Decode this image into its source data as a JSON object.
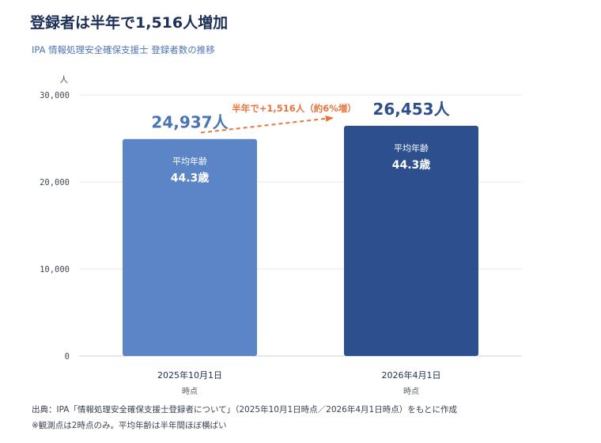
{
  "header": {
    "title": "登録者は半年で1,516人増加",
    "subtitle": "IPA 情報処理安全確保支援士 登録者数の推移"
  },
  "footer": {
    "source": "出典：IPA「情報処理安全確保支援士登録者について」（2025年10月1日時点／2026年4月1日時点）をもとに作成",
    "note": "※観測点は2時点のみ。平均年齢は半年間ほぼ横ばい"
  },
  "chart_data": {
    "type": "bar",
    "title": "登録者は半年で1,516人増加",
    "subtitle": "IPA 情報処理安全確保支援士 登録者数の推移",
    "ylabel": "人",
    "ylim": [
      0,
      30000
    ],
    "yticks": [
      0,
      10000,
      20000,
      30000
    ],
    "ytick_labels": [
      "0",
      "10,000",
      "20,000",
      "30,000"
    ],
    "grid": true,
    "categories": [
      {
        "date": "2025年10月1日",
        "sub": "時点"
      },
      {
        "date": "2026年4月1日",
        "sub": "時点"
      }
    ],
    "values": [
      24937,
      26453
    ],
    "value_labels": [
      "24,937人",
      "26,453人"
    ],
    "avg_age_label": "平均年齢",
    "avg_age": [
      "44.3歳",
      "44.3歳"
    ],
    "colors": [
      "#5b85c7",
      "#2d4f8e"
    ],
    "value_label_colors": [
      "#4b74b5",
      "#2d4f8e"
    ],
    "annotation": {
      "text": "半年で+1,516人（約6%増）",
      "color": "#e8743b"
    }
  }
}
